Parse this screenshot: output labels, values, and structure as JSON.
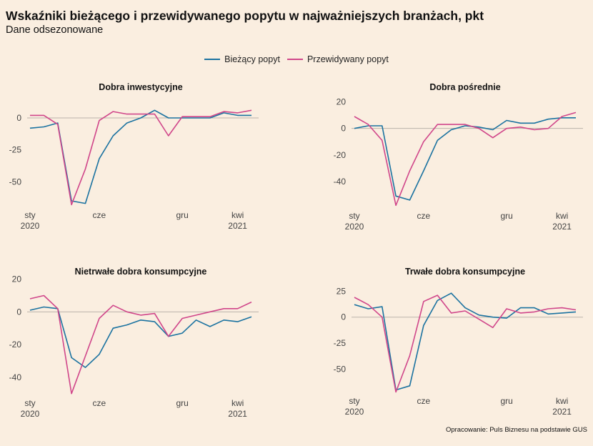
{
  "header": {
    "title": "Wskaźniki bieżącego i przewidywanego popytu w najważniejszych branżach, pkt",
    "subtitle": "Dane odsezonowane"
  },
  "legend": [
    {
      "label": "Bieżący popyt",
      "color": "#1a72a0"
    },
    {
      "label": "Przewidywany popyt",
      "color": "#d0468a"
    }
  ],
  "source": "Opracowanie: Puls Biznesu na podstawie GUS",
  "chart_data": [
    {
      "type": "line",
      "title": "Dobra inwestycyjne",
      "x": [
        "2020-01",
        "2020-02",
        "2020-03",
        "2020-04",
        "2020-05",
        "2020-06",
        "2020-07",
        "2020-08",
        "2020-09",
        "2020-10",
        "2020-11",
        "2020-12",
        "2021-01",
        "2021-02",
        "2021-03",
        "2021-04",
        "2021-05"
      ],
      "x_ticks": [
        {
          "label": "sty",
          "sublabel": "2020",
          "index": 0
        },
        {
          "label": "cze",
          "index": 5
        },
        {
          "label": "gru",
          "index": 11
        },
        {
          "label": "kwi",
          "sublabel": "2021",
          "index": 15
        }
      ],
      "ylim": [
        -70,
        14
      ],
      "y_ticks": [
        0,
        -25,
        -50
      ],
      "series": [
        {
          "name": "Bieżący popyt",
          "values": [
            -8,
            -7,
            -4,
            -65,
            -67,
            -32,
            -14,
            -4,
            0,
            6,
            0,
            0,
            0,
            0,
            4,
            2,
            2
          ]
        },
        {
          "name": "Przewidywany popyt",
          "values": [
            2,
            2,
            -5,
            -68,
            -40,
            -2,
            5,
            3,
            3,
            3,
            -14,
            1,
            1,
            1,
            5,
            4,
            6
          ]
        }
      ]
    },
    {
      "type": "line",
      "title": "Dobra pośrednie",
      "x": [
        "2020-01",
        "2020-02",
        "2020-03",
        "2020-04",
        "2020-05",
        "2020-06",
        "2020-07",
        "2020-08",
        "2020-09",
        "2020-10",
        "2020-11",
        "2020-12",
        "2021-01",
        "2021-02",
        "2021-03",
        "2021-04",
        "2021-05"
      ],
      "x_ticks": [
        {
          "label": "sty",
          "sublabel": "2020",
          "index": 0
        },
        {
          "label": "cze",
          "index": 5
        },
        {
          "label": "gru",
          "index": 11
        },
        {
          "label": "kwi",
          "sublabel": "2021",
          "index": 15
        }
      ],
      "ylim": [
        -60,
        23
      ],
      "y_ticks": [
        20,
        0,
        -20,
        -40
      ],
      "series": [
        {
          "name": "Bieżący popyt",
          "values": [
            0,
            2,
            2,
            -51,
            -54,
            -32,
            -9,
            -1,
            2,
            1,
            -1,
            6,
            4,
            4,
            7,
            8,
            8
          ]
        },
        {
          "name": "Przewidywany popyt",
          "values": [
            9,
            3,
            -9,
            -58,
            -32,
            -10,
            3,
            3,
            3,
            0,
            -7,
            0,
            1,
            -1,
            0,
            9,
            12
          ]
        }
      ]
    },
    {
      "type": "line",
      "title": "Nietrwałe dobra konsumpcyjne",
      "x": [
        "2020-01",
        "2020-02",
        "2020-03",
        "2020-04",
        "2020-05",
        "2020-06",
        "2020-07",
        "2020-08",
        "2020-09",
        "2020-10",
        "2020-11",
        "2020-12",
        "2021-01",
        "2021-02",
        "2021-03",
        "2021-04",
        "2021-05"
      ],
      "x_ticks": [
        {
          "label": "sty",
          "sublabel": "2020",
          "index": 0
        },
        {
          "label": "cze",
          "index": 5
        },
        {
          "label": "gru",
          "index": 11
        },
        {
          "label": "kwi",
          "sublabel": "2021",
          "index": 15
        }
      ],
      "ylim": [
        -51,
        22
      ],
      "y_ticks": [
        20,
        0,
        -20,
        -40
      ],
      "series": [
        {
          "name": "Bieżący popyt",
          "values": [
            1,
            3,
            2,
            -28,
            -34,
            -26,
            -10,
            -8,
            -5,
            -6,
            -15,
            -13,
            -5,
            -9,
            -5,
            -6,
            -3
          ]
        },
        {
          "name": "Przewidywany popyt",
          "values": [
            8,
            10,
            2,
            -50,
            -27,
            -4,
            4,
            0,
            -2,
            -1,
            -15,
            -4,
            -2,
            0,
            2,
            2,
            6
          ]
        }
      ]
    },
    {
      "type": "line",
      "title": "Trwałe dobra konsumpcyjne",
      "x": [
        "2020-01",
        "2020-02",
        "2020-03",
        "2020-04",
        "2020-05",
        "2020-06",
        "2020-07",
        "2020-08",
        "2020-09",
        "2020-10",
        "2020-11",
        "2020-12",
        "2021-01",
        "2021-02",
        "2021-03",
        "2021-04",
        "2021-05"
      ],
      "x_ticks": [
        {
          "label": "sty",
          "sublabel": "2020",
          "index": 0
        },
        {
          "label": "cze",
          "index": 5
        },
        {
          "label": "gru",
          "index": 11
        },
        {
          "label": "kwi",
          "sublabel": "2021",
          "index": 15
        }
      ],
      "ylim": [
        -73,
        30
      ],
      "y_ticks": [
        25,
        0,
        -25,
        -50
      ],
      "series": [
        {
          "name": "Bieżący popyt",
          "values": [
            12,
            8,
            10,
            -70,
            -66,
            -8,
            16,
            23,
            9,
            2,
            0,
            -1,
            9,
            9,
            3,
            4,
            5
          ]
        },
        {
          "name": "Przewidywany popyt",
          "values": [
            19,
            12,
            0,
            -72,
            -37,
            15,
            21,
            4,
            6,
            -2,
            -10,
            8,
            4,
            5,
            8,
            9,
            7
          ]
        }
      ]
    }
  ]
}
